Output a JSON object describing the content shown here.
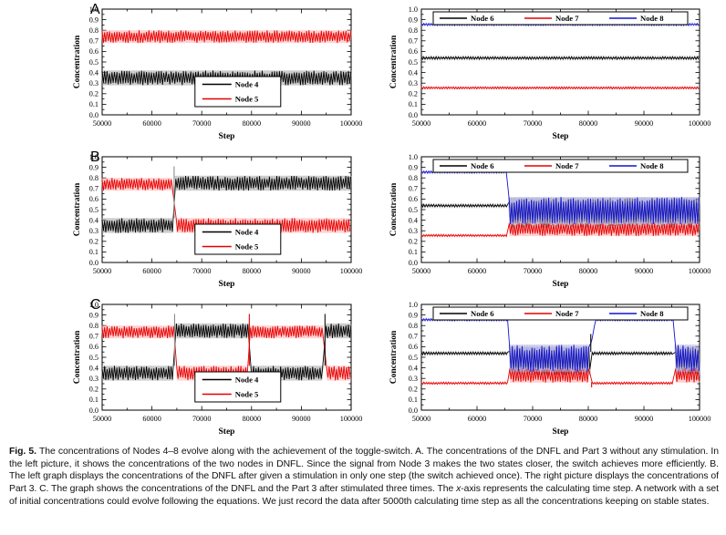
{
  "figure": {
    "panels": [
      {
        "label": "A"
      },
      {
        "label": "B"
      },
      {
        "label": "C"
      }
    ]
  },
  "chart_data": [
    {
      "type": "line",
      "panel": "A",
      "side": "left",
      "title": "",
      "xlabel": "Step",
      "ylabel": "Concentration",
      "xlim": [
        50000,
        100000
      ],
      "ylim": [
        0,
        1
      ],
      "xtick_step": 10000,
      "xminor_step": 5000,
      "ytick_step": 0.1,
      "yminor_step": 0.05,
      "ytick_decimals": 1,
      "legend_position": "bottom-center",
      "series": [
        {
          "name": "Node 4",
          "color": "#000000",
          "halo": "#9e9e9e",
          "segments": [
            {
              "x0": 50000,
              "x1": 100000,
              "lo": 0.28,
              "hi": 0.42,
              "mode": "osc"
            }
          ]
        },
        {
          "name": "Node 5",
          "color": "#e60000",
          "halo": "#ffacac",
          "segments": [
            {
              "x0": 50000,
              "x1": 100000,
              "lo": 0.68,
              "hi": 0.8,
              "mode": "osc"
            }
          ]
        }
      ],
      "spikes": []
    },
    {
      "type": "line",
      "panel": "A",
      "side": "right",
      "title": "",
      "xlabel": "Step",
      "ylabel": "Concentration",
      "xlim": [
        50000,
        100000
      ],
      "ylim": [
        0,
        1
      ],
      "xtick_step": 10000,
      "xminor_step": 5000,
      "ytick_step": 0.1,
      "yminor_step": 0.05,
      "ytick_decimals": 1,
      "legend_position": "top-row",
      "series": [
        {
          "name": "Node 6",
          "color": "#000000",
          "halo": "#9e9e9e",
          "segments": [
            {
              "x0": 50000,
              "x1": 100000,
              "lo": 0.525,
              "hi": 0.55,
              "mode": "osc"
            }
          ]
        },
        {
          "name": "Node 7",
          "color": "#e60000",
          "halo": "#ffacac",
          "segments": [
            {
              "x0": 50000,
              "x1": 100000,
              "lo": 0.245,
              "hi": 0.265,
              "mode": "osc"
            }
          ]
        },
        {
          "name": "Node 8",
          "color": "#1414cc",
          "halo": "#a8a8ea",
          "segments": [
            {
              "x0": 50000,
              "x1": 100000,
              "lo": 0.845,
              "hi": 0.865,
              "mode": "osc"
            }
          ]
        }
      ],
      "spikes": []
    },
    {
      "type": "line",
      "panel": "B",
      "side": "left",
      "title": "",
      "xlabel": "Step",
      "ylabel": "Concentration",
      "xlim": [
        50000,
        100000
      ],
      "ylim": [
        0,
        1
      ],
      "xtick_step": 10000,
      "xminor_step": 5000,
      "ytick_step": 0.1,
      "yminor_step": 0.05,
      "ytick_decimals": 1,
      "legend_position": "bottom-center",
      "series": [
        {
          "name": "Node 4",
          "color": "#000000",
          "halo": "#9e9e9e",
          "segments": [
            {
              "x0": 50000,
              "x1": 64200,
              "lo": 0.28,
              "hi": 0.42,
              "mode": "osc"
            },
            {
              "x0": 64800,
              "x1": 100000,
              "lo": 0.68,
              "hi": 0.82,
              "mode": "osc"
            }
          ]
        },
        {
          "name": "Node 5",
          "color": "#e60000",
          "halo": "#ffacac",
          "segments": [
            {
              "x0": 50000,
              "x1": 64300,
              "lo": 0.68,
              "hi": 0.8,
              "mode": "osc"
            },
            {
              "x0": 64900,
              "x1": 100000,
              "lo": 0.28,
              "hi": 0.42,
              "mode": "osc"
            }
          ]
        }
      ],
      "spikes": [
        {
          "x": 64450,
          "y0": 0.42,
          "y1": 0.91,
          "color": "#8c8c8c"
        }
      ]
    },
    {
      "type": "line",
      "panel": "B",
      "side": "right",
      "title": "",
      "xlabel": "Step",
      "ylabel": "Concentration",
      "xlim": [
        50000,
        100000
      ],
      "ylim": [
        0,
        1
      ],
      "xtick_step": 10000,
      "xminor_step": 5000,
      "ytick_step": 0.1,
      "yminor_step": 0.05,
      "ytick_decimals": 1,
      "legend_position": "top-row",
      "series": [
        {
          "name": "Node 6",
          "color": "#000000",
          "halo": "#9e9e9e",
          "segments": [
            {
              "x0": 50000,
              "x1": 65400,
              "lo": 0.525,
              "hi": 0.55,
              "mode": "osc"
            },
            {
              "x0": 65800,
              "x1": 100000,
              "lo": 0.33,
              "hi": 0.61,
              "mode": "osc"
            }
          ]
        },
        {
          "name": "Node 7",
          "color": "#e60000",
          "halo": "#ffacac",
          "segments": [
            {
              "x0": 50000,
              "x1": 65400,
              "lo": 0.245,
              "hi": 0.265,
              "mode": "osc"
            },
            {
              "x0": 65800,
              "x1": 100000,
              "lo": 0.25,
              "hi": 0.38,
              "mode": "osc"
            }
          ]
        },
        {
          "name": "Node 8",
          "color": "#1414cc",
          "halo": "#a8a8ea",
          "segments": [
            {
              "x0": 50000,
              "x1": 65400,
              "lo": 0.845,
              "hi": 0.865,
              "mode": "osc"
            },
            {
              "x0": 65800,
              "x1": 100000,
              "lo": 0.36,
              "hi": 0.62,
              "mode": "osc"
            }
          ]
        }
      ],
      "spikes": []
    },
    {
      "type": "line",
      "panel": "C",
      "side": "left",
      "title": "",
      "xlabel": "Step",
      "ylabel": "Concentration",
      "xlim": [
        50000,
        100000
      ],
      "ylim": [
        0,
        1
      ],
      "xtick_step": 10000,
      "xminor_step": 5000,
      "ytick_step": 0.1,
      "yminor_step": 0.05,
      "ytick_decimals": 1,
      "legend_position": "bottom-center",
      "series": [
        {
          "name": "Node 4",
          "color": "#000000",
          "halo": "#9e9e9e",
          "segments": [
            {
              "x0": 50000,
              "x1": 64300,
              "lo": 0.28,
              "hi": 0.42,
              "mode": "osc"
            },
            {
              "x0": 64900,
              "x1": 79300,
              "lo": 0.68,
              "hi": 0.82,
              "mode": "osc"
            },
            {
              "x0": 79900,
              "x1": 94400,
              "lo": 0.28,
              "hi": 0.42,
              "mode": "osc"
            },
            {
              "x0": 95000,
              "x1": 100000,
              "lo": 0.68,
              "hi": 0.82,
              "mode": "osc"
            }
          ]
        },
        {
          "name": "Node 5",
          "color": "#e60000",
          "halo": "#ffacac",
          "segments": [
            {
              "x0": 50000,
              "x1": 64400,
              "lo": 0.68,
              "hi": 0.8,
              "mode": "osc"
            },
            {
              "x0": 65000,
              "x1": 79200,
              "lo": 0.28,
              "hi": 0.42,
              "mode": "osc"
            },
            {
              "x0": 79800,
              "x1": 94500,
              "lo": 0.68,
              "hi": 0.8,
              "mode": "osc"
            },
            {
              "x0": 95100,
              "x1": 100000,
              "lo": 0.28,
              "hi": 0.42,
              "mode": "osc"
            }
          ]
        }
      ],
      "spikes": [
        {
          "x": 64550,
          "y0": 0.42,
          "y1": 0.91,
          "color": "#8c8c8c"
        },
        {
          "x": 79550,
          "y0": 0.42,
          "y1": 0.91,
          "color": "#e60000"
        },
        {
          "x": 94750,
          "y0": 0.42,
          "y1": 0.91,
          "color": "#111111"
        }
      ]
    },
    {
      "type": "line",
      "panel": "C",
      "side": "right",
      "title": "",
      "xlabel": "Step",
      "ylabel": "Concentration",
      "xlim": [
        50000,
        100000
      ],
      "ylim": [
        0,
        1
      ],
      "xtick_step": 10000,
      "xminor_step": 5000,
      "ytick_step": 0.1,
      "yminor_step": 0.05,
      "ytick_decimals": 1,
      "legend_position": "top-row",
      "series": [
        {
          "name": "Node 6",
          "color": "#000000",
          "halo": "#9e9e9e",
          "segments": [
            {
              "x0": 50000,
              "x1": 65500,
              "lo": 0.525,
              "hi": 0.55,
              "mode": "osc"
            },
            {
              "x0": 65900,
              "x1": 80300,
              "lo": 0.33,
              "hi": 0.6,
              "mode": "osc"
            },
            {
              "x0": 80700,
              "x1": 95300,
              "lo": 0.525,
              "hi": 0.55,
              "mode": "osc"
            },
            {
              "x0": 95700,
              "x1": 100000,
              "lo": 0.33,
              "hi": 0.6,
              "mode": "osc"
            }
          ]
        },
        {
          "name": "Node 7",
          "color": "#e60000",
          "halo": "#ffacac",
          "segments": [
            {
              "x0": 50000,
              "x1": 65500,
              "lo": 0.245,
              "hi": 0.265,
              "mode": "osc"
            },
            {
              "x0": 65900,
              "x1": 80200,
              "lo": 0.26,
              "hi": 0.4,
              "mode": "osc"
            },
            {
              "x0": 80700,
              "x1": 95300,
              "lo": 0.245,
              "hi": 0.265,
              "mode": "osc"
            },
            {
              "x0": 95700,
              "x1": 100000,
              "lo": 0.26,
              "hi": 0.4,
              "mode": "osc"
            }
          ]
        },
        {
          "name": "Node 8",
          "color": "#1414cc",
          "halo": "#a8a8ea",
          "segments": [
            {
              "x0": 50000,
              "x1": 65500,
              "lo": 0.845,
              "hi": 0.865,
              "mode": "osc"
            },
            {
              "x0": 65900,
              "x1": 80200,
              "lo": 0.36,
              "hi": 0.62,
              "mode": "osc"
            },
            {
              "x0": 80300,
              "x1": 81500,
              "lo": 0.62,
              "hi": 0.855,
              "mode": "ramp"
            },
            {
              "x0": 81500,
              "x1": 95300,
              "lo": 0.845,
              "hi": 0.865,
              "mode": "osc"
            },
            {
              "x0": 95700,
              "x1": 100000,
              "lo": 0.36,
              "hi": 0.62,
              "mode": "osc"
            }
          ]
        }
      ],
      "spikes": [
        {
          "x": 80450,
          "y0": 0.55,
          "y1": 0.72,
          "color": "#000000"
        },
        {
          "x": 80600,
          "y0": 0.215,
          "y1": 0.265,
          "color": "#e60000"
        }
      ]
    }
  ],
  "caption": {
    "parts": [
      {
        "style": "bold",
        "text": "Fig. 5."
      },
      {
        "style": "normal",
        "text": "  The concentrations of Nodes 4–8 evolve along with the achievement of the toggle-switch. A. The concentrations of the DNFL and Part 3 without any stimulation. In the left picture, it shows the concentrations of the two nodes in DNFL. Since the signal from Node 3 makes the two states closer, the switch achieves more efficiently. B. The left graph displays the concentrations of the DNFL after given a stimulation in only one step (the switch achieved once). The right picture displays the concentrations of Part 3. C. The graph shows the concentrations of the DNFL and the Part 3 after stimulated three times. The "
      },
      {
        "style": "italic",
        "text": "x"
      },
      {
        "style": "normal",
        "text": "-axis represents the calculating time step. A network with a set of initial concentrations could evolve following the equations. We just record the data after 5000th calculating time step as all the concentrations keeping on stable states."
      }
    ]
  }
}
